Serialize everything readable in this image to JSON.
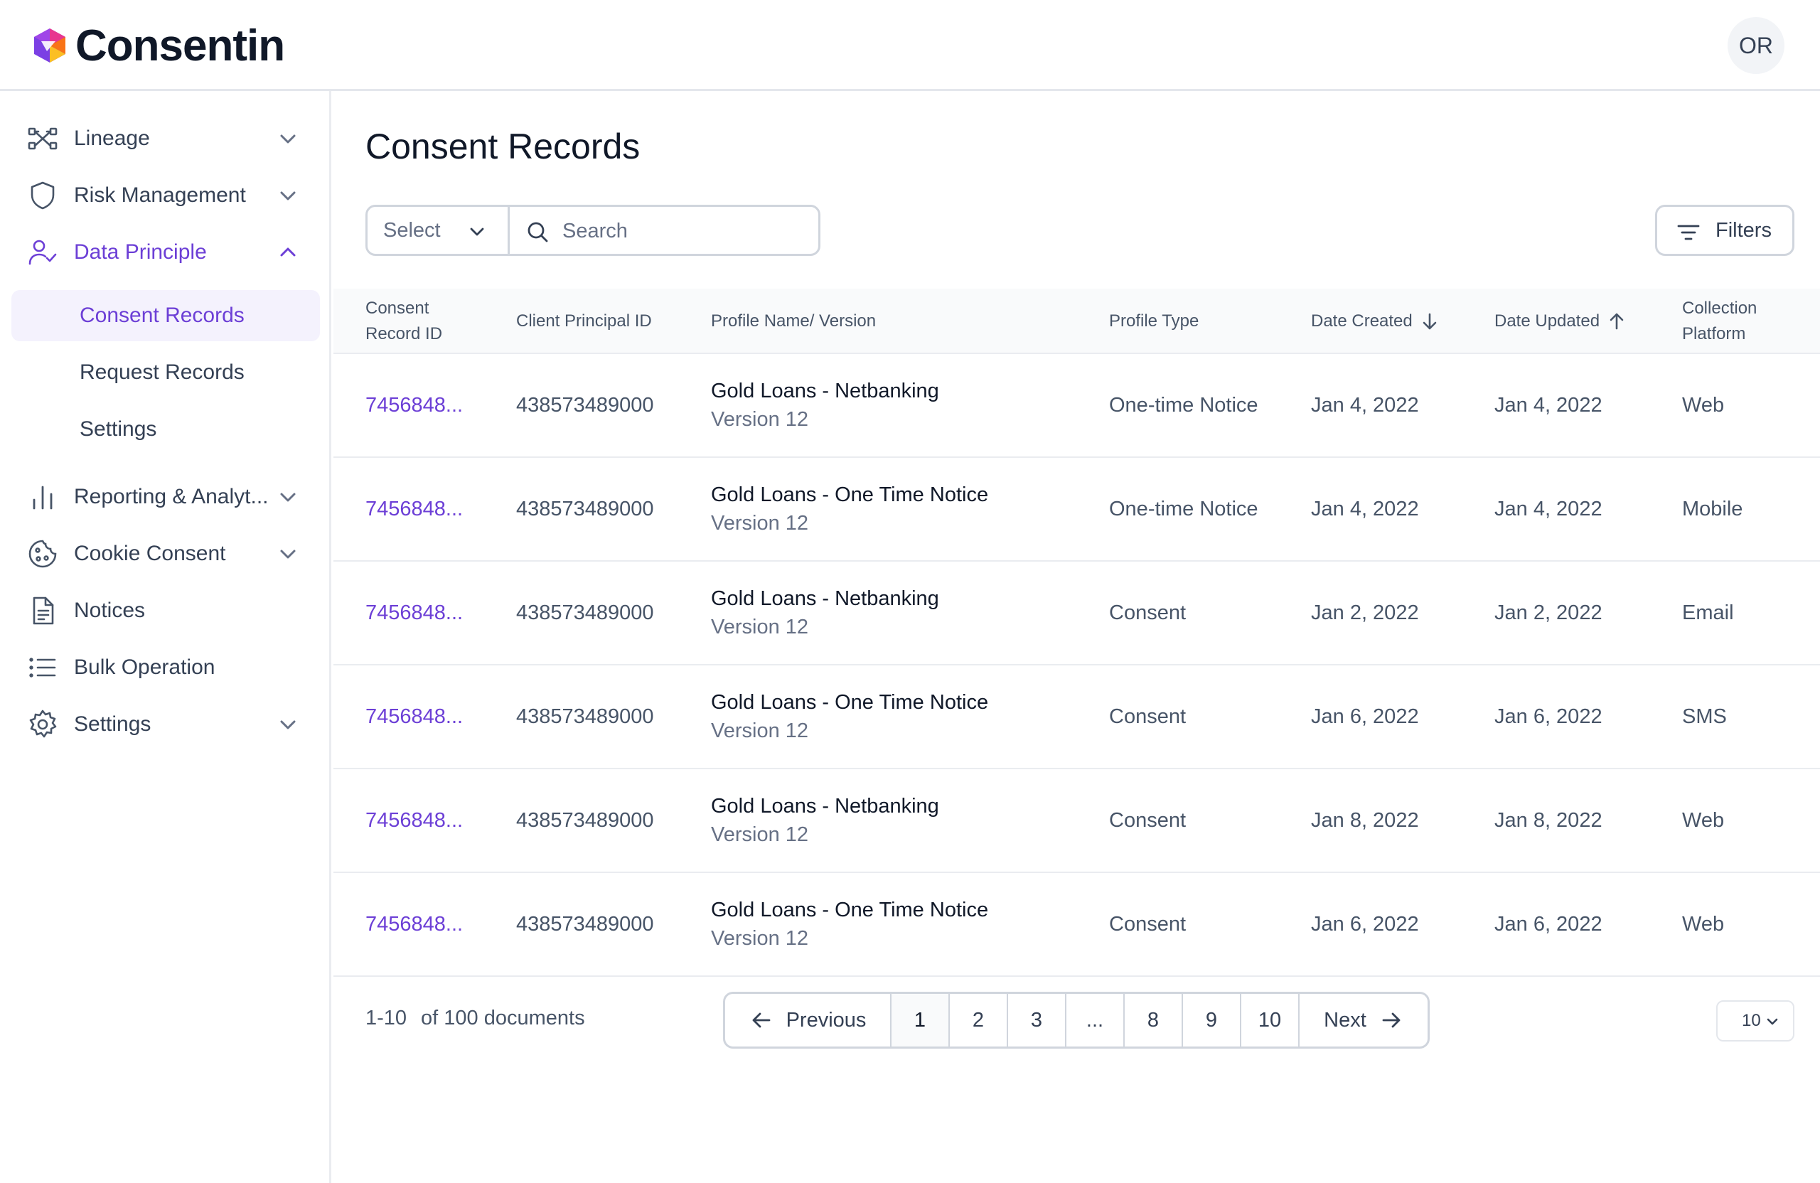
{
  "app": {
    "name": "Consentin",
    "user_initials": "OR"
  },
  "colors": {
    "accent": "#6c3fd6",
    "selected_bg": "#f4f2fd"
  },
  "sidebar": {
    "items": [
      {
        "label": "Lineage",
        "icon": "lineage-icon",
        "expandable": true
      },
      {
        "label": "Risk Management",
        "icon": "shield-icon",
        "expandable": true
      },
      {
        "label": "Data Principle",
        "icon": "user-check-icon",
        "expandable": true,
        "expanded": true,
        "active": true
      },
      {
        "label": "Reporting & Analyt...",
        "icon": "bar-chart-icon",
        "expandable": true
      },
      {
        "label": "Cookie Consent",
        "icon": "cookie-icon",
        "expandable": true
      },
      {
        "label": "Notices",
        "icon": "document-icon",
        "expandable": false
      },
      {
        "label": "Bulk Operation",
        "icon": "list-icon",
        "expandable": false
      },
      {
        "label": "Settings",
        "icon": "gear-icon",
        "expandable": true
      }
    ],
    "sub_items": [
      {
        "label": "Consent Records",
        "selected": true
      },
      {
        "label": "Request Records"
      },
      {
        "label": "Settings"
      }
    ]
  },
  "main": {
    "title": "Consent Records",
    "select_label": "Select",
    "search_placeholder": "Search",
    "filters_label": "Filters"
  },
  "table": {
    "columns": {
      "record_id": [
        "Consent",
        "Record ID"
      ],
      "client_id": "Client Principal ID",
      "profile": "Profile Name/ Version",
      "type": "Profile Type",
      "created": "Date Created",
      "updated": "Date Updated",
      "platform": [
        "Collection",
        "Platform"
      ]
    },
    "rows": [
      {
        "record_id": "7456848...",
        "client_id": "438573489000",
        "profile_name": "Gold Loans - Netbanking",
        "profile_version": "Version 12",
        "type": "One-time Notice",
        "created": "Jan 4, 2022",
        "updated": "Jan 4, 2022",
        "platform": "Web"
      },
      {
        "record_id": "7456848...",
        "client_id": "438573489000",
        "profile_name": "Gold Loans - One Time Notice",
        "profile_version": "Version 12",
        "type": "One-time Notice",
        "created": "Jan 4, 2022",
        "updated": "Jan 4, 2022",
        "platform": "Mobile"
      },
      {
        "record_id": "7456848...",
        "client_id": "438573489000",
        "profile_name": "Gold Loans - Netbanking",
        "profile_version": "Version 12",
        "type": "Consent",
        "created": "Jan 2, 2022",
        "updated": "Jan 2, 2022",
        "platform": "Email"
      },
      {
        "record_id": "7456848...",
        "client_id": "438573489000",
        "profile_name": "Gold Loans - One Time Notice",
        "profile_version": "Version 12",
        "type": "Consent",
        "created": "Jan 6, 2022",
        "updated": "Jan 6, 2022",
        "platform": "SMS"
      },
      {
        "record_id": "7456848...",
        "client_id": "438573489000",
        "profile_name": "Gold Loans - Netbanking",
        "profile_version": "Version 12",
        "type": "Consent",
        "created": "Jan 8, 2022",
        "updated": "Jan 8, 2022",
        "platform": "Web"
      },
      {
        "record_id": "7456848...",
        "client_id": "438573489000",
        "profile_name": "Gold Loans - One Time Notice",
        "profile_version": "Version 12",
        "type": "Consent",
        "created": "Jan 6, 2022",
        "updated": "Jan 6, 2022",
        "platform": "Web"
      }
    ]
  },
  "pagination": {
    "range": "1-10",
    "total": "of 100 documents",
    "previous_label": "Previous",
    "next_label": "Next",
    "pages": [
      "1",
      "2",
      "3",
      "...",
      "8",
      "9",
      "10"
    ],
    "current_page": "1",
    "page_size": "10"
  }
}
